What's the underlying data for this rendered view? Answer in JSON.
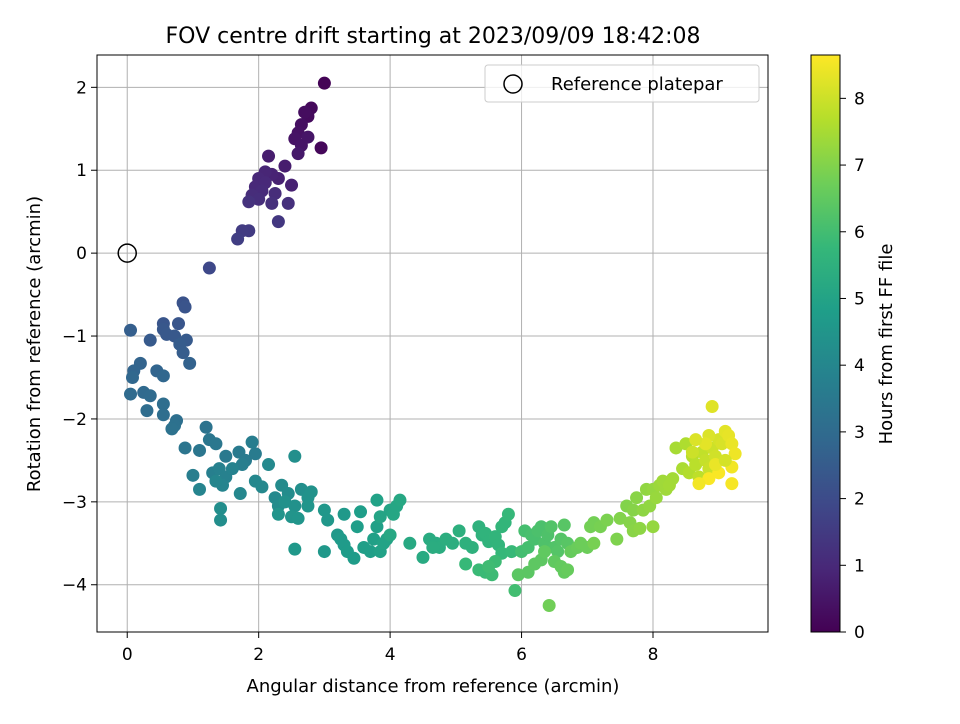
{
  "chart_data": {
    "type": "scatter",
    "title": "FOV centre drift starting at 2023/09/09 18:42:08",
    "xlabel": "Angular distance from reference (arcmin)",
    "ylabel": "Rotation from reference (arcmin)",
    "xlim": [
      -0.46,
      9.75
    ],
    "ylim": [
      -4.57,
      2.39
    ],
    "xticks": [
      0,
      2,
      4,
      6,
      8
    ],
    "yticks": [
      -4,
      -3,
      -2,
      -1,
      0,
      1,
      2
    ],
    "xtick_labels": [
      "0",
      "2",
      "4",
      "6",
      "8"
    ],
    "ytick_labels": [
      "−4",
      "−3",
      "−2",
      "−1",
      "0",
      "1",
      "2"
    ],
    "grid": true,
    "legend": {
      "location": "top-right",
      "entries": [
        "Reference platepar"
      ]
    },
    "colorbar": {
      "label": "Hours from first FF file",
      "colormap": "viridis",
      "range": [
        0,
        8.65
      ],
      "ticks": [
        0,
        1,
        2,
        3,
        4,
        5,
        6,
        7,
        8
      ],
      "tick_labels": [
        "0",
        "1",
        "2",
        "3",
        "4",
        "5",
        "6",
        "7",
        "8"
      ],
      "colors": [
        "#440154",
        "#482878",
        "#3e4989",
        "#31688e",
        "#26828e",
        "#1f9e89",
        "#35b779",
        "#6ece58",
        "#b5de2b",
        "#fde725"
      ]
    },
    "reference_point": {
      "name": "Reference platepar",
      "x": 0,
      "y": 0
    },
    "series": [
      {
        "points": [
          [
            3.0,
            2.05,
            0.05
          ],
          [
            2.95,
            1.27,
            0.15
          ],
          [
            2.8,
            1.75,
            0.2
          ],
          [
            2.75,
            1.65,
            0.25
          ],
          [
            2.7,
            1.7,
            0.3
          ],
          [
            2.65,
            1.55,
            0.35
          ],
          [
            2.6,
            1.45,
            0.4
          ],
          [
            2.55,
            1.38,
            0.45
          ],
          [
            2.65,
            1.3,
            0.5
          ],
          [
            2.75,
            1.4,
            0.5
          ],
          [
            2.6,
            1.2,
            0.6
          ],
          [
            2.4,
            1.05,
            0.7
          ],
          [
            2.15,
            1.17,
            0.7
          ],
          [
            2.5,
            0.82,
            0.8
          ],
          [
            2.3,
            0.9,
            0.8
          ],
          [
            2.2,
            0.95,
            0.85
          ],
          [
            2.1,
            0.98,
            0.9
          ],
          [
            2.0,
            0.9,
            0.95
          ],
          [
            1.95,
            0.8,
            1.0
          ],
          [
            2.1,
            0.85,
            1.0
          ],
          [
            2.05,
            0.75,
            1.05
          ],
          [
            2.25,
            0.72,
            1.1
          ],
          [
            1.9,
            0.7,
            1.1
          ],
          [
            2.0,
            0.65,
            1.15
          ],
          [
            2.2,
            0.6,
            1.2
          ],
          [
            2.45,
            0.6,
            1.2
          ],
          [
            1.85,
            0.62,
            1.25
          ],
          [
            2.3,
            0.38,
            1.4
          ],
          [
            1.85,
            0.27,
            1.5
          ],
          [
            1.75,
            0.27,
            1.55
          ],
          [
            1.68,
            0.17,
            1.6
          ],
          [
            1.25,
            -0.18,
            1.9
          ],
          [
            0.85,
            -0.6,
            2.2
          ],
          [
            0.88,
            -0.65,
            2.25
          ],
          [
            0.55,
            -0.85,
            2.3
          ],
          [
            0.78,
            -0.85,
            2.3
          ],
          [
            0.55,
            -0.92,
            2.35
          ],
          [
            0.6,
            -0.98,
            2.4
          ],
          [
            0.72,
            -1.0,
            2.4
          ],
          [
            0.35,
            -1.05,
            2.45
          ],
          [
            0.9,
            -1.05,
            2.45
          ],
          [
            0.8,
            -1.1,
            2.5
          ],
          [
            0.85,
            -1.2,
            2.55
          ],
          [
            0.05,
            -0.93,
            2.6
          ],
          [
            0.95,
            -1.33,
            2.7
          ],
          [
            0.2,
            -1.33,
            2.75
          ],
          [
            0.45,
            -1.42,
            2.8
          ],
          [
            0.1,
            -1.42,
            2.8
          ],
          [
            0.55,
            -1.48,
            2.85
          ],
          [
            0.08,
            -1.5,
            2.9
          ],
          [
            0.25,
            -1.68,
            2.95
          ],
          [
            0.35,
            -1.72,
            3.0
          ],
          [
            0.05,
            -1.7,
            3.0
          ],
          [
            0.3,
            -1.9,
            3.05
          ],
          [
            0.55,
            -1.82,
            3.1
          ],
          [
            0.55,
            -1.95,
            3.1
          ],
          [
            0.75,
            -2.02,
            3.15
          ],
          [
            0.72,
            -2.08,
            3.2
          ],
          [
            0.68,
            -2.12,
            3.25
          ],
          [
            1.2,
            -2.1,
            3.3
          ],
          [
            0.88,
            -2.35,
            3.35
          ],
          [
            1.1,
            -2.38,
            3.4
          ],
          [
            1.25,
            -2.25,
            3.4
          ],
          [
            1.35,
            -2.3,
            3.45
          ],
          [
            1.5,
            -2.45,
            3.5
          ],
          [
            1.7,
            -2.4,
            3.55
          ],
          [
            1.8,
            -2.5,
            3.6
          ],
          [
            1.95,
            -2.42,
            3.6
          ],
          [
            1.9,
            -2.28,
            3.65
          ],
          [
            1.75,
            -2.55,
            3.7
          ],
          [
            1.0,
            -2.68,
            3.7
          ],
          [
            1.3,
            -2.65,
            3.75
          ],
          [
            1.4,
            -2.6,
            3.8
          ],
          [
            1.5,
            -2.7,
            3.8
          ],
          [
            1.6,
            -2.6,
            3.85
          ],
          [
            1.45,
            -2.8,
            3.9
          ],
          [
            1.1,
            -2.85,
            3.9
          ],
          [
            1.35,
            -2.75,
            3.95
          ],
          [
            1.72,
            -2.9,
            4.0
          ],
          [
            1.95,
            -2.75,
            4.0
          ],
          [
            2.05,
            -2.82,
            4.05
          ],
          [
            2.15,
            -2.55,
            4.1
          ],
          [
            2.25,
            -2.95,
            4.1
          ],
          [
            2.35,
            -2.8,
            4.15
          ],
          [
            2.3,
            -3.05,
            4.2
          ],
          [
            2.45,
            -2.9,
            4.2
          ],
          [
            1.42,
            -3.08,
            4.25
          ],
          [
            1.42,
            -3.22,
            4.25
          ],
          [
            2.55,
            -2.45,
            4.3
          ],
          [
            2.65,
            -2.85,
            4.3
          ],
          [
            2.4,
            -3.0,
            4.35
          ],
          [
            2.55,
            -3.05,
            4.35
          ],
          [
            2.75,
            -2.95,
            4.4
          ],
          [
            2.8,
            -2.88,
            4.4
          ],
          [
            2.3,
            -3.15,
            4.45
          ],
          [
            2.5,
            -3.18,
            4.45
          ],
          [
            2.6,
            -3.2,
            4.5
          ],
          [
            2.75,
            -3.05,
            4.5
          ],
          [
            3.0,
            -3.1,
            4.55
          ],
          [
            3.05,
            -3.22,
            4.55
          ],
          [
            2.55,
            -3.57,
            4.6
          ],
          [
            3.0,
            -3.6,
            4.6
          ],
          [
            3.3,
            -3.15,
            4.65
          ],
          [
            3.2,
            -3.4,
            4.65
          ],
          [
            3.25,
            -3.45,
            4.7
          ],
          [
            3.3,
            -3.52,
            4.7
          ],
          [
            3.35,
            -3.6,
            4.75
          ],
          [
            3.45,
            -3.68,
            4.75
          ],
          [
            3.5,
            -3.3,
            4.8
          ],
          [
            3.55,
            -3.12,
            4.8
          ],
          [
            3.6,
            -3.55,
            4.85
          ],
          [
            3.7,
            -3.6,
            4.85
          ],
          [
            3.75,
            -3.45,
            4.9
          ],
          [
            3.8,
            -3.3,
            4.9
          ],
          [
            3.8,
            -2.98,
            4.95
          ],
          [
            3.85,
            -3.6,
            4.95
          ],
          [
            3.9,
            -3.5,
            5.0
          ],
          [
            3.95,
            -3.45,
            5.0
          ],
          [
            3.85,
            -3.18,
            5.05
          ],
          [
            4.0,
            -3.1,
            5.05
          ],
          [
            4.05,
            -3.15,
            5.1
          ],
          [
            4.1,
            -3.05,
            5.1
          ],
          [
            4.15,
            -2.98,
            5.15
          ],
          [
            4.0,
            -3.4,
            5.15
          ],
          [
            4.3,
            -3.5,
            5.2
          ],
          [
            4.5,
            -3.67,
            5.25
          ],
          [
            4.6,
            -3.45,
            5.3
          ],
          [
            4.7,
            -3.5,
            5.3
          ],
          [
            4.75,
            -3.55,
            5.35
          ],
          [
            4.65,
            -3.55,
            5.35
          ],
          [
            4.85,
            -3.45,
            5.4
          ],
          [
            4.95,
            -3.5,
            5.4
          ],
          [
            5.05,
            -3.35,
            5.45
          ],
          [
            5.15,
            -3.5,
            5.5
          ],
          [
            5.25,
            -3.55,
            5.5
          ],
          [
            5.35,
            -3.3,
            5.55
          ],
          [
            5.4,
            -3.4,
            5.55
          ],
          [
            5.45,
            -3.38,
            5.6
          ],
          [
            5.5,
            -3.48,
            5.6
          ],
          [
            5.6,
            -3.42,
            5.65
          ],
          [
            5.65,
            -3.52,
            5.65
          ],
          [
            5.7,
            -3.3,
            5.7
          ],
          [
            5.75,
            -3.25,
            5.7
          ],
          [
            5.8,
            -3.15,
            5.75
          ],
          [
            5.7,
            -3.62,
            5.75
          ],
          [
            5.85,
            -3.6,
            5.8
          ],
          [
            5.15,
            -3.75,
            5.8
          ],
          [
            5.35,
            -3.82,
            5.85
          ],
          [
            5.45,
            -3.85,
            5.85
          ],
          [
            5.55,
            -3.88,
            5.9
          ],
          [
            5.6,
            -3.72,
            5.9
          ],
          [
            5.5,
            -3.78,
            5.95
          ],
          [
            5.9,
            -4.07,
            6.0
          ],
          [
            6.0,
            -3.6,
            6.0
          ],
          [
            6.05,
            -3.35,
            6.05
          ],
          [
            6.1,
            -3.55,
            6.05
          ],
          [
            6.15,
            -3.4,
            6.1
          ],
          [
            6.2,
            -3.45,
            6.1
          ],
          [
            6.25,
            -3.35,
            6.15
          ],
          [
            6.3,
            -3.3,
            6.15
          ],
          [
            6.35,
            -3.5,
            6.2
          ],
          [
            6.4,
            -3.4,
            6.2
          ],
          [
            6.45,
            -3.3,
            6.25
          ],
          [
            6.5,
            -3.55,
            6.25
          ],
          [
            6.55,
            -3.6,
            6.3
          ],
          [
            6.6,
            -3.45,
            6.3
          ],
          [
            6.65,
            -3.28,
            6.35
          ],
          [
            6.7,
            -3.5,
            6.35
          ],
          [
            5.95,
            -3.88,
            6.4
          ],
          [
            6.1,
            -3.85,
            6.4
          ],
          [
            6.2,
            -3.75,
            6.45
          ],
          [
            6.3,
            -3.7,
            6.45
          ],
          [
            6.35,
            -3.6,
            6.5
          ],
          [
            6.5,
            -3.72,
            6.5
          ],
          [
            6.6,
            -3.78,
            6.55
          ],
          [
            6.65,
            -3.85,
            6.55
          ],
          [
            6.7,
            -3.82,
            6.6
          ],
          [
            6.75,
            -3.6,
            6.6
          ],
          [
            6.85,
            -3.55,
            6.65
          ],
          [
            6.9,
            -3.5,
            6.7
          ],
          [
            7.0,
            -3.55,
            6.7
          ],
          [
            6.42,
            -4.25,
            6.75
          ],
          [
            7.05,
            -3.3,
            6.8
          ],
          [
            7.1,
            -3.25,
            6.8
          ],
          [
            7.1,
            -3.5,
            6.85
          ],
          [
            7.2,
            -3.3,
            6.85
          ],
          [
            7.3,
            -3.22,
            6.9
          ],
          [
            7.45,
            -3.45,
            6.95
          ],
          [
            7.5,
            -3.2,
            7.0
          ],
          [
            7.6,
            -3.05,
            7.0
          ],
          [
            7.65,
            -3.25,
            7.05
          ],
          [
            7.7,
            -3.1,
            7.05
          ],
          [
            7.75,
            -2.95,
            7.1
          ],
          [
            7.7,
            -3.35,
            7.1
          ],
          [
            7.8,
            -3.32,
            7.15
          ],
          [
            7.85,
            -3.1,
            7.15
          ],
          [
            7.9,
            -2.85,
            7.2
          ],
          [
            7.95,
            -3.05,
            7.2
          ],
          [
            8.0,
            -3.3,
            7.25
          ],
          [
            8.0,
            -2.85,
            7.25
          ],
          [
            8.05,
            -2.95,
            7.3
          ],
          [
            8.1,
            -2.8,
            7.35
          ],
          [
            8.15,
            -2.75,
            7.4
          ],
          [
            8.2,
            -2.85,
            7.4
          ],
          [
            8.25,
            -2.8,
            7.45
          ],
          [
            8.3,
            -2.72,
            7.45
          ],
          [
            8.35,
            -2.35,
            7.5
          ],
          [
            8.45,
            -2.6,
            7.55
          ],
          [
            8.5,
            -2.3,
            7.6
          ],
          [
            8.55,
            -2.65,
            7.65
          ],
          [
            8.6,
            -2.45,
            7.7
          ],
          [
            8.65,
            -2.55,
            7.75
          ],
          [
            8.7,
            -2.7,
            7.8
          ],
          [
            8.75,
            -2.4,
            7.85
          ],
          [
            8.8,
            -2.5,
            7.9
          ],
          [
            8.85,
            -2.6,
            7.95
          ],
          [
            8.9,
            -2.35,
            8.0
          ],
          [
            8.95,
            -2.45,
            8.05
          ],
          [
            9.0,
            -2.25,
            8.1
          ],
          [
            9.05,
            -2.3,
            8.15
          ],
          [
            8.85,
            -2.2,
            8.2
          ],
          [
            8.9,
            -1.85,
            8.25
          ],
          [
            9.1,
            -2.15,
            8.3
          ],
          [
            9.15,
            -2.2,
            8.35
          ],
          [
            9.2,
            -2.3,
            8.4
          ],
          [
            9.25,
            -2.42,
            8.45
          ],
          [
            9.2,
            -2.58,
            8.5
          ],
          [
            9.2,
            -2.78,
            8.55
          ],
          [
            9.0,
            -2.65,
            8.6
          ],
          [
            8.85,
            -2.72,
            8.6
          ],
          [
            8.7,
            -2.78,
            8.5
          ],
          [
            8.95,
            -2.55,
            8.4
          ],
          [
            8.8,
            -2.3,
            8.3
          ],
          [
            8.65,
            -2.25,
            8.2
          ],
          [
            9.1,
            -2.5,
            8.1
          ],
          [
            8.6,
            -2.4,
            8.0
          ]
        ]
      }
    ]
  }
}
